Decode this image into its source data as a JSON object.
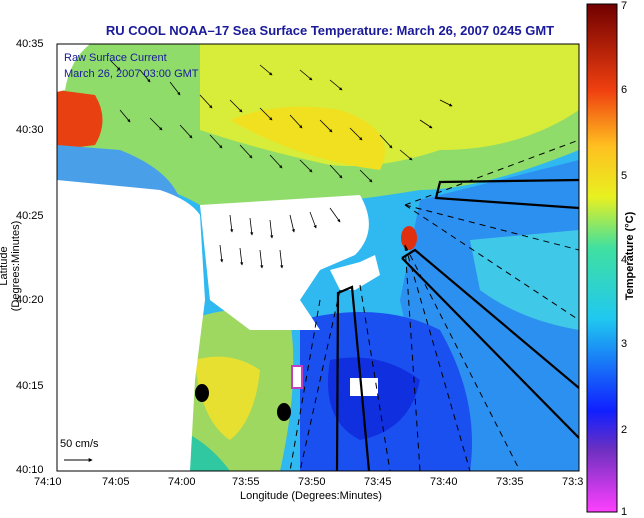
{
  "title": "RU COOL  NOAA–17  Sea Surface Temperature:  March 26, 2007 0245 GMT",
  "overlay": {
    "line1": "Raw Surface Current",
    "line2": "March 26, 2007 03:00 GMT"
  },
  "axes": {
    "x_label": "Longitude (Degrees:Minutes)",
    "y_label": "Latitude (Degrees:Minutes)",
    "x_ticks": [
      "74:10",
      "74:05",
      "74:00",
      "73:55",
      "73:50",
      "73:45",
      "73:40",
      "73:35",
      "73:3"
    ],
    "y_ticks": [
      "40:35",
      "40:30",
      "40:25",
      "40:20",
      "40:15",
      "40:10"
    ]
  },
  "colorbar": {
    "label": "Temperature (°C)",
    "ticks": [
      "7",
      "6",
      "5",
      "4",
      "3",
      "2",
      "1"
    ]
  },
  "scale_label": "50 cm/s",
  "colors": {
    "title_text": "#1a1a9a",
    "land": "#ffffff",
    "cold": "#1030ff",
    "mid": "#20c8e8",
    "warm": "#f0e020",
    "hot": "#e02010"
  }
}
